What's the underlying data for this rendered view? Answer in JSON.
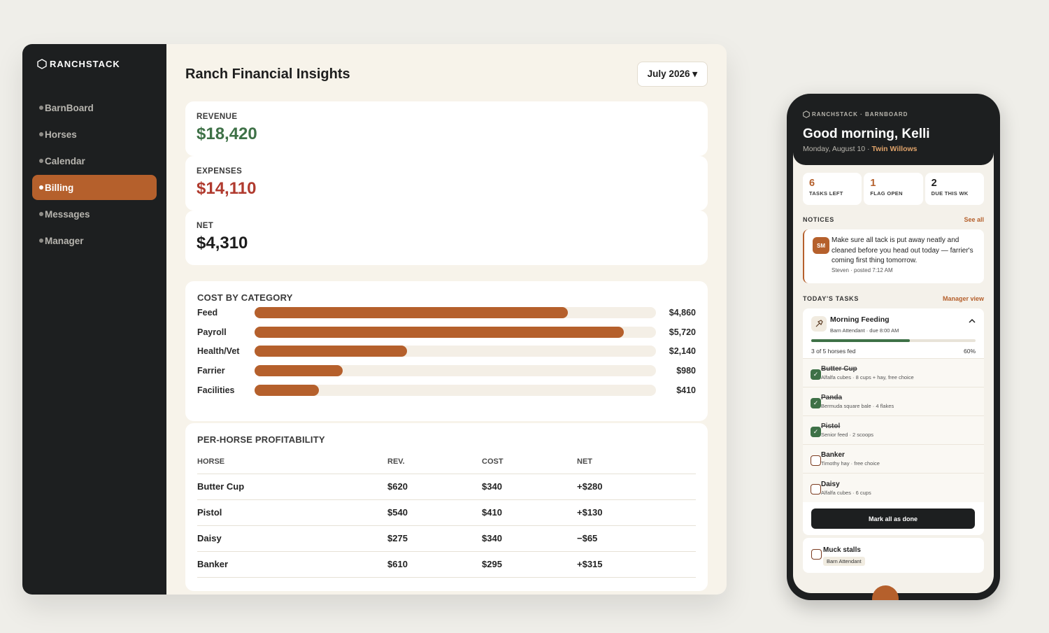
{
  "desktop": {
    "brand": "RANCHSTACK",
    "nav": [
      {
        "label": "BarnBoard"
      },
      {
        "label": "Horses"
      },
      {
        "label": "Calendar"
      },
      {
        "label": "Billing"
      },
      {
        "label": "Messages"
      },
      {
        "label": "Manager"
      }
    ],
    "active_nav": "Billing",
    "title": "Ranch Financial Insights",
    "month": "July 2026 ▾",
    "stats": {
      "revenue": {
        "label": "REVENUE",
        "value": "$18,420"
      },
      "expenses": {
        "label": "EXPENSES",
        "value": "$14,110"
      },
      "net": {
        "label": "NET",
        "value": "$4,310"
      }
    },
    "cost_by_category": {
      "title": "COST BY CATEGORY",
      "items": [
        {
          "label": "Feed",
          "amount": "$4,860",
          "value": 4860
        },
        {
          "label": "Payroll",
          "amount": "$5,720",
          "value": 5720
        },
        {
          "label": "Health/Vet",
          "amount": "$2,140",
          "value": 2140
        },
        {
          "label": "Farrier",
          "amount": "$980",
          "value": 980
        },
        {
          "label": "Facilities",
          "amount": "$410",
          "value": 410
        }
      ],
      "fill_fractions": [
        0.78,
        0.92,
        0.38,
        0.22,
        0.16
      ]
    },
    "profitability": {
      "title": "PER-HORSE PROFITABILITY",
      "headers": [
        "HORSE",
        "REV.",
        "COST",
        "NET"
      ],
      "rows": [
        {
          "horse": "Butter Cup",
          "rev": "$620",
          "cost": "$340",
          "net": "+$280",
          "positive": true
        },
        {
          "horse": "Pistol",
          "rev": "$540",
          "cost": "$410",
          "net": "+$130",
          "positive": true
        },
        {
          "horse": "Daisy",
          "rev": "$275",
          "cost": "$340",
          "net": "−$65",
          "positive": false
        },
        {
          "horse": "Banker",
          "rev": "$610",
          "cost": "$295",
          "net": "+$315",
          "positive": true
        }
      ]
    }
  },
  "phone": {
    "brand": "RANCHSTACK · BARNBOARD",
    "greeting": "Good morning, Kelli",
    "date": "Monday, August 10 · ",
    "ranch": "Twin Willows",
    "stats": [
      {
        "num": "6",
        "label": "TASKS LEFT",
        "accent": true
      },
      {
        "num": "1",
        "label": "FLAG OPEN",
        "accent": true
      },
      {
        "num": "2",
        "label": "DUE THIS WK",
        "accent": false
      }
    ],
    "notices": {
      "title": "NOTICES",
      "link": "See all",
      "avatar": "SM",
      "text": "Make sure all tack is put away neatly and cleaned before you head out today — farrier's coming first thing tomorrow.",
      "meta": "Steven · posted 7:12 AM"
    },
    "tasks": {
      "title": "TODAY'S TASKS",
      "link": "Manager view",
      "feeding": {
        "title": "Morning Feeding",
        "sub": "Barn Attendant · due 8:00 AM",
        "progress_text": "3 of 5 horses fed",
        "progress_pct": "60%",
        "progress_value": 0.6,
        "horses": [
          {
            "name": "Butter Cup",
            "detail": "Alfalfa cubes · 8 cups + hay, free choice",
            "done": true
          },
          {
            "name": "Panda",
            "detail": "Bermuda square bale · 4 flakes",
            "done": true
          },
          {
            "name": "Pistol",
            "detail": "Senior feed · 2 scoops",
            "done": true
          },
          {
            "name": "Banker",
            "detail": "Timothy hay · free choice",
            "done": false
          },
          {
            "name": "Daisy",
            "detail": "Alfalfa cubes · 6 cups",
            "done": false
          }
        ],
        "mark_all": "Mark all as done"
      },
      "muck": {
        "title": "Muck stalls",
        "tag": "Barn Attendant"
      }
    }
  },
  "colors": {
    "accent": "#b5602c",
    "positive": "#3e7147",
    "negative": "#b03a2e",
    "dark": "#1d1f20"
  }
}
